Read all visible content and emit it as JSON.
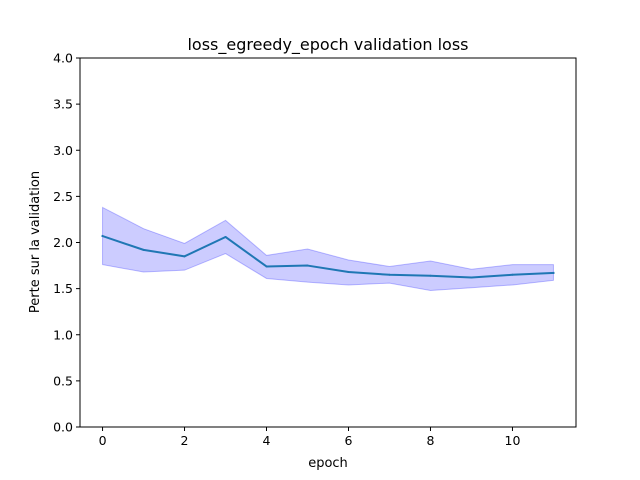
{
  "chart_data": {
    "type": "line",
    "title": "loss_egreedy_epoch validation loss",
    "xlabel": "epoch",
    "ylabel": "Perte sur la validation",
    "xlim": [
      -0.55,
      11.55
    ],
    "ylim": [
      0.0,
      4.0
    ],
    "x_ticks": [
      0,
      2,
      4,
      6,
      8,
      10
    ],
    "y_ticks": [
      0.0,
      0.5,
      1.0,
      1.5,
      2.0,
      2.5,
      3.0,
      3.5,
      4.0
    ],
    "x_tick_labels": [
      "0",
      "2",
      "4",
      "6",
      "8",
      "10"
    ],
    "y_tick_labels": [
      "0.0",
      "0.5",
      "1.0",
      "1.5",
      "2.0",
      "2.5",
      "3.0",
      "3.5",
      "4.0"
    ],
    "grid": false,
    "x": [
      0,
      1,
      2,
      3,
      4,
      5,
      6,
      7,
      8,
      9,
      10,
      11
    ],
    "series": [
      {
        "values": [
          2.07,
          1.92,
          1.85,
          2.06,
          1.74,
          1.75,
          1.68,
          1.65,
          1.64,
          1.62,
          1.65,
          1.67
        ],
        "band_upper": [
          2.38,
          2.15,
          1.99,
          2.24,
          1.86,
          1.93,
          1.81,
          1.74,
          1.8,
          1.71,
          1.76,
          1.76
        ],
        "band_lower": [
          1.76,
          1.68,
          1.7,
          1.88,
          1.61,
          1.57,
          1.54,
          1.56,
          1.48,
          1.51,
          1.54,
          1.59
        ],
        "line_color": "#1f77b4",
        "band_color": "#0000ff"
      }
    ]
  }
}
